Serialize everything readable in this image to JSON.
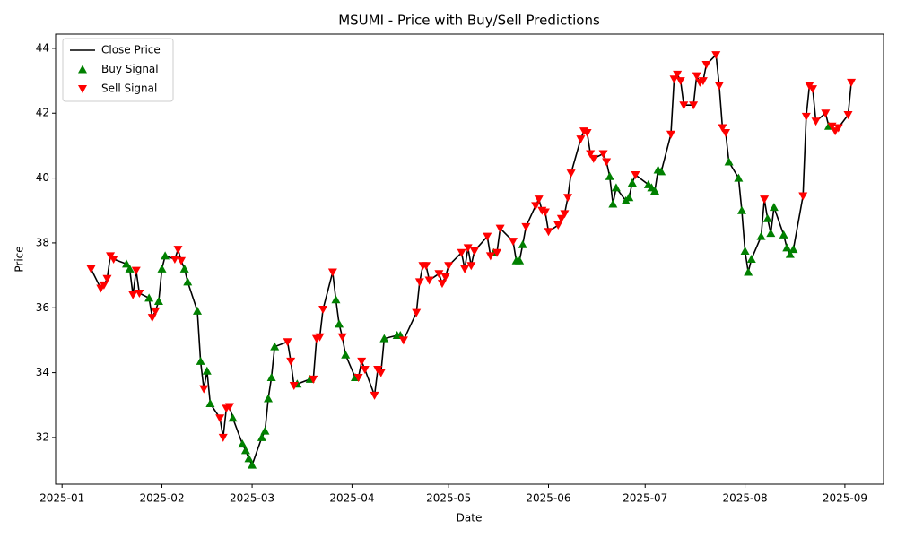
{
  "chart_data": {
    "type": "line",
    "title": "MSUMI - Price with Buy/Sell Predictions",
    "xlabel": "Date",
    "ylabel": "Price",
    "x": [
      "2025-01-10",
      "2025-01-13",
      "2025-01-14",
      "2025-01-15",
      "2025-01-16",
      "2025-01-17",
      "2025-01-21",
      "2025-01-22",
      "2025-01-23",
      "2025-01-24",
      "2025-01-25",
      "2025-01-28",
      "2025-01-29",
      "2025-01-30",
      "2025-01-31",
      "2025-02-01",
      "2025-02-02",
      "2025-02-05",
      "2025-02-06",
      "2025-02-07",
      "2025-02-08",
      "2025-02-09",
      "2025-02-12",
      "2025-02-13",
      "2025-02-14",
      "2025-02-15",
      "2025-02-16",
      "2025-02-19",
      "2025-02-20",
      "2025-02-21",
      "2025-02-22",
      "2025-02-23",
      "2025-02-26",
      "2025-02-27",
      "2025-02-28",
      "2025-03-01",
      "2025-03-04",
      "2025-03-05",
      "2025-03-06",
      "2025-03-07",
      "2025-03-08",
      "2025-03-12",
      "2025-03-13",
      "2025-03-14",
      "2025-03-15",
      "2025-03-19",
      "2025-03-20",
      "2025-03-21",
      "2025-03-22",
      "2025-03-23",
      "2025-03-26",
      "2025-03-27",
      "2025-03-28",
      "2025-03-29",
      "2025-03-30",
      "2025-04-02",
      "2025-04-03",
      "2025-04-04",
      "2025-04-05",
      "2025-04-08",
      "2025-04-09",
      "2025-04-10",
      "2025-04-11",
      "2025-04-15",
      "2025-04-16",
      "2025-04-17",
      "2025-04-21",
      "2025-04-22",
      "2025-04-23",
      "2025-04-24",
      "2025-04-25",
      "2025-04-28",
      "2025-04-29",
      "2025-04-30",
      "2025-05-01",
      "2025-05-05",
      "2025-05-06",
      "2025-05-07",
      "2025-05-08",
      "2025-05-09",
      "2025-05-13",
      "2025-05-14",
      "2025-05-15",
      "2025-05-16",
      "2025-05-17",
      "2025-05-21",
      "2025-05-22",
      "2025-05-23",
      "2025-05-24",
      "2025-05-25",
      "2025-05-28",
      "2025-05-29",
      "2025-05-30",
      "2025-05-31",
      "2025-06-01",
      "2025-06-04",
      "2025-06-05",
      "2025-06-06",
      "2025-06-07",
      "2025-06-08",
      "2025-06-11",
      "2025-06-12",
      "2025-06-13",
      "2025-06-14",
      "2025-06-15",
      "2025-06-18",
      "2025-06-19",
      "2025-06-20",
      "2025-06-21",
      "2025-06-22",
      "2025-06-25",
      "2025-06-26",
      "2025-06-27",
      "2025-06-28",
      "2025-07-02",
      "2025-07-03",
      "2025-07-04",
      "2025-07-05",
      "2025-07-06",
      "2025-07-09",
      "2025-07-10",
      "2025-07-11",
      "2025-07-12",
      "2025-07-13",
      "2025-07-16",
      "2025-07-17",
      "2025-07-18",
      "2025-07-19",
      "2025-07-20",
      "2025-07-23",
      "2025-07-24",
      "2025-07-25",
      "2025-07-26",
      "2025-07-27",
      "2025-07-30",
      "2025-07-31",
      "2025-08-01",
      "2025-08-02",
      "2025-08-03",
      "2025-08-06",
      "2025-08-07",
      "2025-08-08",
      "2025-08-09",
      "2025-08-10",
      "2025-08-13",
      "2025-08-14",
      "2025-08-15",
      "2025-08-16",
      "2025-08-19",
      "2025-08-20",
      "2025-08-21",
      "2025-08-22",
      "2025-08-23",
      "2025-08-26",
      "2025-08-27",
      "2025-08-28",
      "2025-08-29",
      "2025-08-30",
      "2025-09-02",
      "2025-09-03"
    ],
    "series": [
      {
        "name": "Close Price",
        "type": "line",
        "color": "#000000",
        "values": [
          37.2,
          36.6,
          36.7,
          36.9,
          37.6,
          37.5,
          37.35,
          37.2,
          36.4,
          37.15,
          36.45,
          36.3,
          35.7,
          35.9,
          36.2,
          37.2,
          37.6,
          37.5,
          37.8,
          37.45,
          37.2,
          36.8,
          35.9,
          34.35,
          33.5,
          34.05,
          33.05,
          32.6,
          32.0,
          32.9,
          32.95,
          32.6,
          31.8,
          31.6,
          31.35,
          31.15,
          32.0,
          32.2,
          33.2,
          33.85,
          34.8,
          34.95,
          34.35,
          33.6,
          33.65,
          33.8,
          33.8,
          35.05,
          35.1,
          35.95,
          37.1,
          36.25,
          35.5,
          35.1,
          34.55,
          33.85,
          33.85,
          34.35,
          34.1,
          33.3,
          34.1,
          34.0,
          35.05,
          35.15,
          35.15,
          35.0,
          35.85,
          36.8,
          37.3,
          37.3,
          36.85,
          37.05,
          36.75,
          36.95,
          37.3,
          37.7,
          37.2,
          37.85,
          37.3,
          37.75,
          38.2,
          37.6,
          37.7,
          37.7,
          38.45,
          38.05,
          37.45,
          37.45,
          37.95,
          38.5,
          39.15,
          39.35,
          39.0,
          38.95,
          38.35,
          38.55,
          38.75,
          38.9,
          39.4,
          40.15,
          41.2,
          41.45,
          41.4,
          40.75,
          40.6,
          40.75,
          40.5,
          40.05,
          39.2,
          39.7,
          39.3,
          39.4,
          39.85,
          40.1,
          39.8,
          39.7,
          39.6,
          40.25,
          40.2,
          41.35,
          43.05,
          43.2,
          43.0,
          42.25,
          42.25,
          43.15,
          42.95,
          43.0,
          43.5,
          43.8,
          42.85,
          41.55,
          41.4,
          40.5,
          40.0,
          39.0,
          37.75,
          37.1,
          37.5,
          38.2,
          39.35,
          38.75,
          38.3,
          39.1,
          38.25,
          37.85,
          37.65,
          37.8,
          39.45,
          41.9,
          42.85,
          42.75,
          41.75,
          42.0,
          41.6,
          41.6,
          41.45,
          41.55,
          41.95,
          42.95
        ]
      },
      {
        "name": "Buy Signal",
        "type": "scatter",
        "marker": "up",
        "color": "#008000",
        "values": [
          null,
          null,
          null,
          null,
          null,
          null,
          37.35,
          37.2,
          null,
          null,
          null,
          36.3,
          null,
          null,
          36.2,
          37.2,
          37.6,
          null,
          null,
          null,
          37.2,
          36.8,
          35.9,
          34.35,
          null,
          34.05,
          33.05,
          null,
          null,
          null,
          null,
          32.6,
          31.8,
          31.6,
          31.35,
          31.15,
          32.0,
          32.2,
          33.2,
          33.85,
          34.8,
          null,
          null,
          null,
          33.65,
          33.8,
          null,
          null,
          null,
          null,
          null,
          36.25,
          35.5,
          null,
          34.55,
          33.85,
          null,
          null,
          null,
          null,
          null,
          null,
          35.05,
          35.15,
          35.15,
          null,
          null,
          null,
          null,
          null,
          null,
          null,
          null,
          null,
          null,
          null,
          null,
          null,
          null,
          null,
          null,
          null,
          37.7,
          null,
          null,
          null,
          37.45,
          37.45,
          37.95,
          null,
          null,
          null,
          null,
          null,
          null,
          null,
          null,
          null,
          null,
          null,
          null,
          null,
          null,
          null,
          null,
          null,
          null,
          40.05,
          39.2,
          39.7,
          39.3,
          39.4,
          39.85,
          null,
          39.8,
          39.7,
          39.6,
          40.25,
          40.2,
          null,
          null,
          null,
          null,
          null,
          null,
          null,
          null,
          null,
          null,
          null,
          null,
          null,
          null,
          40.5,
          40.0,
          39.0,
          37.75,
          37.1,
          37.5,
          38.2,
          null,
          38.75,
          38.3,
          39.1,
          38.25,
          37.85,
          37.65,
          37.8,
          null,
          null,
          null,
          null,
          null,
          null,
          41.6,
          null,
          null,
          null,
          null,
          null
        ]
      },
      {
        "name": "Sell Signal",
        "type": "scatter",
        "marker": "down",
        "color": "#ff0000",
        "values": [
          37.2,
          36.6,
          36.7,
          36.9,
          37.6,
          37.5,
          null,
          null,
          36.4,
          37.15,
          36.45,
          null,
          35.7,
          35.9,
          null,
          null,
          null,
          37.5,
          37.8,
          37.45,
          null,
          null,
          null,
          null,
          33.5,
          null,
          null,
          32.6,
          32.0,
          32.9,
          32.95,
          null,
          null,
          null,
          null,
          null,
          null,
          null,
          null,
          null,
          null,
          34.95,
          34.35,
          33.6,
          null,
          null,
          33.8,
          35.05,
          35.1,
          35.95,
          37.1,
          null,
          null,
          35.1,
          null,
          null,
          33.85,
          34.35,
          34.1,
          33.3,
          34.1,
          34.0,
          null,
          null,
          null,
          35.0,
          35.85,
          36.8,
          37.3,
          37.3,
          36.85,
          37.05,
          36.75,
          36.95,
          37.3,
          37.7,
          37.2,
          37.85,
          37.3,
          37.75,
          38.2,
          37.6,
          null,
          37.7,
          38.45,
          38.05,
          null,
          null,
          null,
          38.5,
          39.15,
          39.35,
          39.0,
          38.95,
          38.35,
          38.55,
          38.75,
          38.9,
          39.4,
          40.15,
          41.2,
          41.45,
          41.4,
          40.75,
          40.6,
          40.75,
          40.5,
          null,
          null,
          null,
          null,
          null,
          null,
          40.1,
          null,
          null,
          null,
          null,
          null,
          41.35,
          43.05,
          43.2,
          43.0,
          42.25,
          42.25,
          43.15,
          42.95,
          43.0,
          43.5,
          43.8,
          42.85,
          41.55,
          41.4,
          null,
          null,
          null,
          null,
          null,
          null,
          null,
          39.35,
          null,
          null,
          null,
          null,
          null,
          null,
          null,
          39.45,
          41.9,
          42.85,
          42.75,
          41.75,
          42.0,
          null,
          41.6,
          41.45,
          41.55,
          41.95,
          42.95
        ]
      }
    ],
    "xlim": [
      "2024-12-30",
      "2025-09-13"
    ],
    "xticks": [
      "2025-01",
      "2025-02",
      "2025-03",
      "2025-04",
      "2025-05",
      "2025-06",
      "2025-07",
      "2025-08",
      "2025-09"
    ],
    "ylim": [
      30.56,
      44.44
    ],
    "yticks": [
      32,
      34,
      36,
      38,
      40,
      42,
      44
    ],
    "legend": "upper left"
  }
}
